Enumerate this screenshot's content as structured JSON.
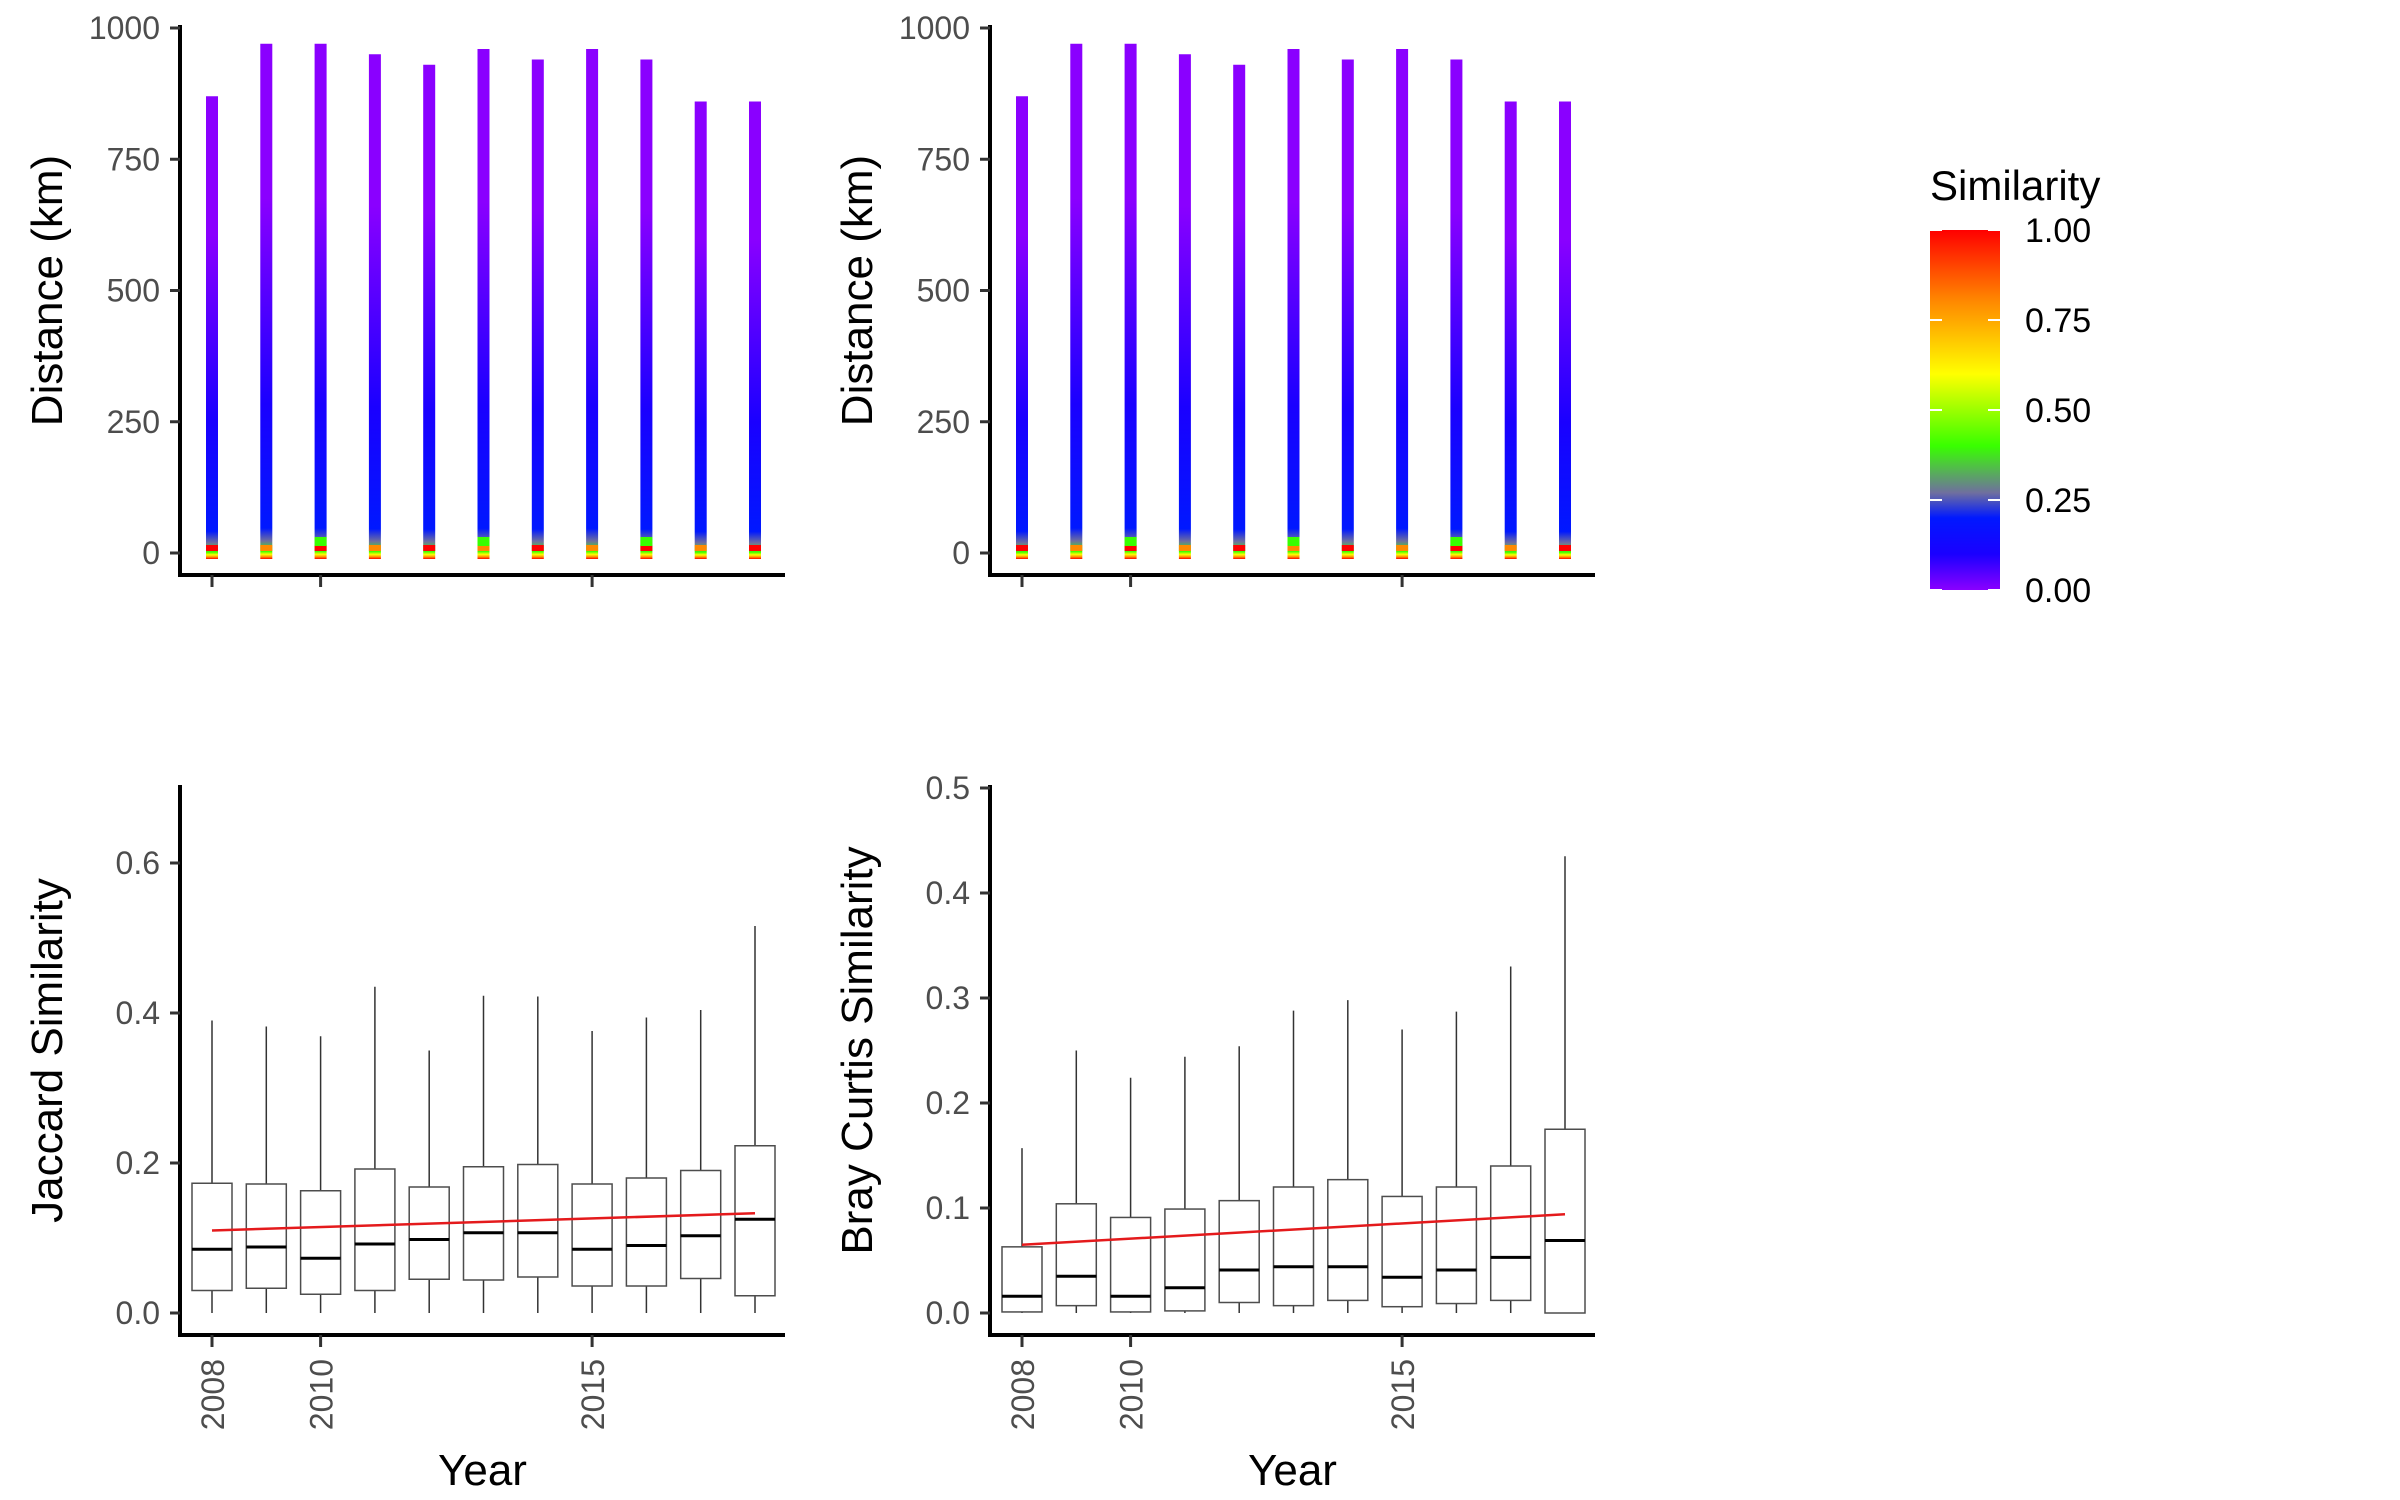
{
  "colors": {
    "spectrum": [
      "#8a00ff",
      "#1a00ff",
      "#0018ff",
      "#6f6f9f",
      "#38ff00",
      "#ffff00",
      "#ff8a00",
      "#ff0000"
    ],
    "trend_line": "#e41a1c",
    "median": "#000000",
    "box_border": "#4d4d4d"
  },
  "legend": {
    "title": "Similarity",
    "labels": [
      "1.00",
      "0.75",
      "0.50",
      "0.25",
      "0.00"
    ],
    "ticks": [
      1.0,
      0.75,
      0.5,
      0.25,
      0.0
    ]
  },
  "chart_data": [
    {
      "type": "bar",
      "panel": "top-left",
      "ylabel": "Distance (km)",
      "xlabel": "",
      "ylim": [
        0,
        1000
      ],
      "yticks": [
        0,
        250,
        500,
        750,
        1000
      ],
      "xticks": [
        2008,
        2010,
        2015
      ],
      "x": [
        2008,
        2009,
        2010,
        2011,
        2012,
        2013,
        2014,
        2015,
        2016,
        2017,
        2018
      ],
      "values": [
        870,
        970,
        970,
        950,
        930,
        960,
        940,
        960,
        940,
        860,
        860
      ],
      "fill": "gradient by Similarity (high similarity at short distance)"
    },
    {
      "type": "bar",
      "panel": "top-right",
      "ylabel": "Distance (km)",
      "xlabel": "",
      "ylim": [
        0,
        1000
      ],
      "yticks": [
        0,
        250,
        500,
        750,
        1000
      ],
      "xticks": [
        2008,
        2010,
        2015
      ],
      "x": [
        2008,
        2009,
        2010,
        2011,
        2012,
        2013,
        2014,
        2015,
        2016,
        2017,
        2018
      ],
      "values": [
        870,
        970,
        970,
        950,
        930,
        960,
        940,
        960,
        940,
        860,
        860
      ],
      "fill": "gradient by Similarity (high similarity at short distance)"
    },
    {
      "type": "box",
      "panel": "bottom-left",
      "ylabel": "Jaccard Similarity",
      "xlabel": "Year",
      "ylim": [
        0,
        0.7
      ],
      "yticks": [
        0.0,
        0.2,
        0.4,
        0.6
      ],
      "ytick_labels": [
        "0.0",
        "0.2",
        "0.4",
        "0.6"
      ],
      "xticks": [
        2008,
        2010,
        2015
      ],
      "x": [
        2008,
        2009,
        2010,
        2011,
        2012,
        2013,
        2014,
        2015,
        2016,
        2017,
        2018
      ],
      "boxes": [
        {
          "min": 0.0,
          "q1": 0.03,
          "median": 0.085,
          "q3": 0.173,
          "max": 0.39
        },
        {
          "min": 0.0,
          "q1": 0.033,
          "median": 0.088,
          "q3": 0.172,
          "max": 0.382
        },
        {
          "min": 0.0,
          "q1": 0.025,
          "median": 0.073,
          "q3": 0.163,
          "max": 0.369
        },
        {
          "min": 0.0,
          "q1": 0.03,
          "median": 0.092,
          "q3": 0.192,
          "max": 0.435
        },
        {
          "min": 0.0,
          "q1": 0.045,
          "median": 0.098,
          "q3": 0.168,
          "max": 0.35
        },
        {
          "min": 0.0,
          "q1": 0.044,
          "median": 0.107,
          "q3": 0.195,
          "max": 0.423
        },
        {
          "min": 0.0,
          "q1": 0.048,
          "median": 0.107,
          "q3": 0.198,
          "max": 0.422
        },
        {
          "min": 0.0,
          "q1": 0.036,
          "median": 0.085,
          "q3": 0.172,
          "max": 0.376
        },
        {
          "min": 0.0,
          "q1": 0.036,
          "median": 0.09,
          "q3": 0.18,
          "max": 0.394
        },
        {
          "min": 0.0,
          "q1": 0.046,
          "median": 0.103,
          "q3": 0.19,
          "max": 0.404
        },
        {
          "min": 0.0,
          "q1": 0.023,
          "median": 0.125,
          "q3": 0.223,
          "max": 0.516
        }
      ],
      "trend": {
        "x": [
          2008,
          2018
        ],
        "y": [
          0.11,
          0.133
        ]
      }
    },
    {
      "type": "box",
      "panel": "bottom-right",
      "ylabel": "Bray Curtis Similarity",
      "xlabel": "Year",
      "ylim": [
        0,
        0.5
      ],
      "yticks": [
        0.0,
        0.1,
        0.2,
        0.3,
        0.4,
        0.5
      ],
      "ytick_labels": [
        "0.0",
        "0.1",
        "0.2",
        "0.3",
        "0.4",
        "0.5"
      ],
      "xticks": [
        2008,
        2010,
        2015
      ],
      "x": [
        2008,
        2009,
        2010,
        2011,
        2012,
        2013,
        2014,
        2015,
        2016,
        2017,
        2018
      ],
      "boxes": [
        {
          "min": 0.0,
          "q1": 0.001,
          "median": 0.016,
          "q3": 0.063,
          "max": 0.157
        },
        {
          "min": 0.0,
          "q1": 0.007,
          "median": 0.035,
          "q3": 0.104,
          "max": 0.25
        },
        {
          "min": 0.0,
          "q1": 0.001,
          "median": 0.016,
          "q3": 0.091,
          "max": 0.224
        },
        {
          "min": 0.0,
          "q1": 0.002,
          "median": 0.024,
          "q3": 0.099,
          "max": 0.244
        },
        {
          "min": 0.0,
          "q1": 0.01,
          "median": 0.041,
          "q3": 0.107,
          "max": 0.254
        },
        {
          "min": 0.0,
          "q1": 0.007,
          "median": 0.044,
          "q3": 0.12,
          "max": 0.288
        },
        {
          "min": 0.0,
          "q1": 0.012,
          "median": 0.044,
          "q3": 0.127,
          "max": 0.298
        },
        {
          "min": 0.0,
          "q1": 0.006,
          "median": 0.034,
          "q3": 0.111,
          "max": 0.27
        },
        {
          "min": 0.0,
          "q1": 0.009,
          "median": 0.041,
          "q3": 0.12,
          "max": 0.287
        },
        {
          "min": 0.0,
          "q1": 0.012,
          "median": 0.053,
          "q3": 0.14,
          "max": 0.33
        },
        {
          "min": 0.0,
          "q1": 0.0,
          "median": 0.069,
          "q3": 0.175,
          "max": 0.435
        }
      ],
      "trend": {
        "x": [
          2008,
          2018
        ],
        "y": [
          0.065,
          0.094
        ]
      }
    }
  ]
}
